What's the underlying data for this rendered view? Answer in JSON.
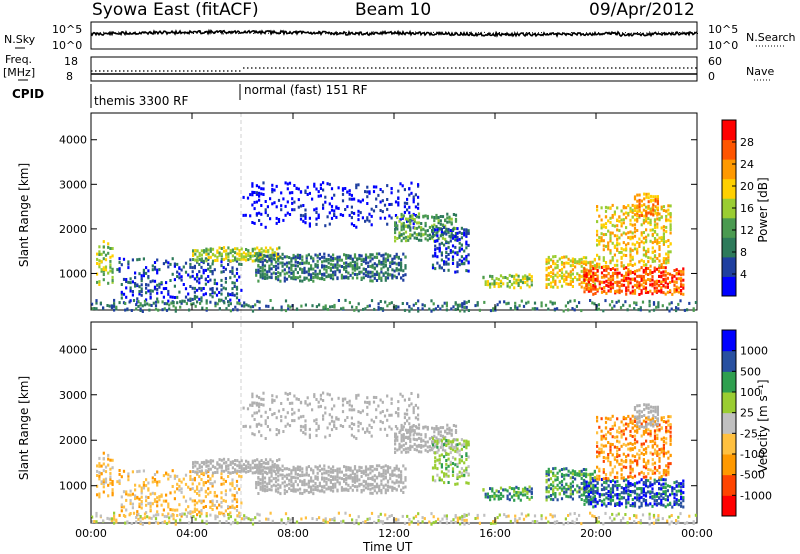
{
  "header": {
    "site": "Syowa East (fitACF)",
    "beam": "Beam 10",
    "date": "09/Apr/2012"
  },
  "noise_panel": {
    "left_label": "N.Sky",
    "right_label": "N.Search",
    "left_ticks": [
      "10^5",
      "10^0"
    ],
    "right_ticks": [
      "10^5",
      "10^0"
    ]
  },
  "freq_panel": {
    "left_label_line1": "Freq.",
    "left_label_line2": "[MHz]",
    "right_label": "Nave",
    "left_ticks": [
      "18",
      "8"
    ],
    "right_ticks": [
      "60",
      "0"
    ]
  },
  "cpid": {
    "label": "CPID",
    "modes": [
      {
        "name": "themis 3300 RF",
        "start_hour": 0
      },
      {
        "name": "normal (fast) 151 RF",
        "start_hour": 6
      }
    ]
  },
  "colors": {
    "power_scale": [
      "#0000ff",
      "#1f3f9f",
      "#2d7a5a",
      "#4a9a50",
      "#9acd32",
      "#ffd000",
      "#ff9900",
      "#ff5500",
      "#ff0000"
    ],
    "velocity_scale": [
      "#ff0000",
      "#ff4400",
      "#ff9900",
      "#ffc040",
      "#c0c0c0",
      "#9acd32",
      "#2f9f4f",
      "#2850a0",
      "#0000ff"
    ],
    "ground_scatter": "#b0b0b0"
  },
  "chart_data": [
    {
      "type": "heatmap",
      "name": "power",
      "ylabel": "Slant Range [km]",
      "yticks": [
        1000,
        2000,
        3000,
        4000
      ],
      "ylim": [
        180,
        4600
      ],
      "xlim": [
        0,
        24
      ],
      "xticks": [
        "00:00",
        "04:00",
        "08:00",
        "12:00",
        "16:00",
        "20:00",
        "00:00"
      ],
      "colorbar_label": "Power [dB]",
      "colorbar_ticks": [
        "28",
        "24",
        "20",
        "16",
        "12",
        "8",
        "4"
      ],
      "colorbar_range": [
        0,
        30
      ]
    },
    {
      "type": "heatmap",
      "name": "velocity",
      "ylabel": "Slant Range [km]",
      "xlabel": "Time UT",
      "yticks": [
        1000,
        2000,
        3000,
        4000
      ],
      "ylim": [
        180,
        4600
      ],
      "xlim": [
        0,
        24
      ],
      "xticks": [
        "00:00",
        "04:00",
        "08:00",
        "12:00",
        "16:00",
        "20:00",
        "00:00"
      ],
      "colorbar_label": "Velocity [m s⁻¹]",
      "colorbar_ticks": [
        "1000",
        "500",
        "100",
        "25",
        "-25",
        "-100",
        "-500",
        "-1000"
      ]
    }
  ]
}
